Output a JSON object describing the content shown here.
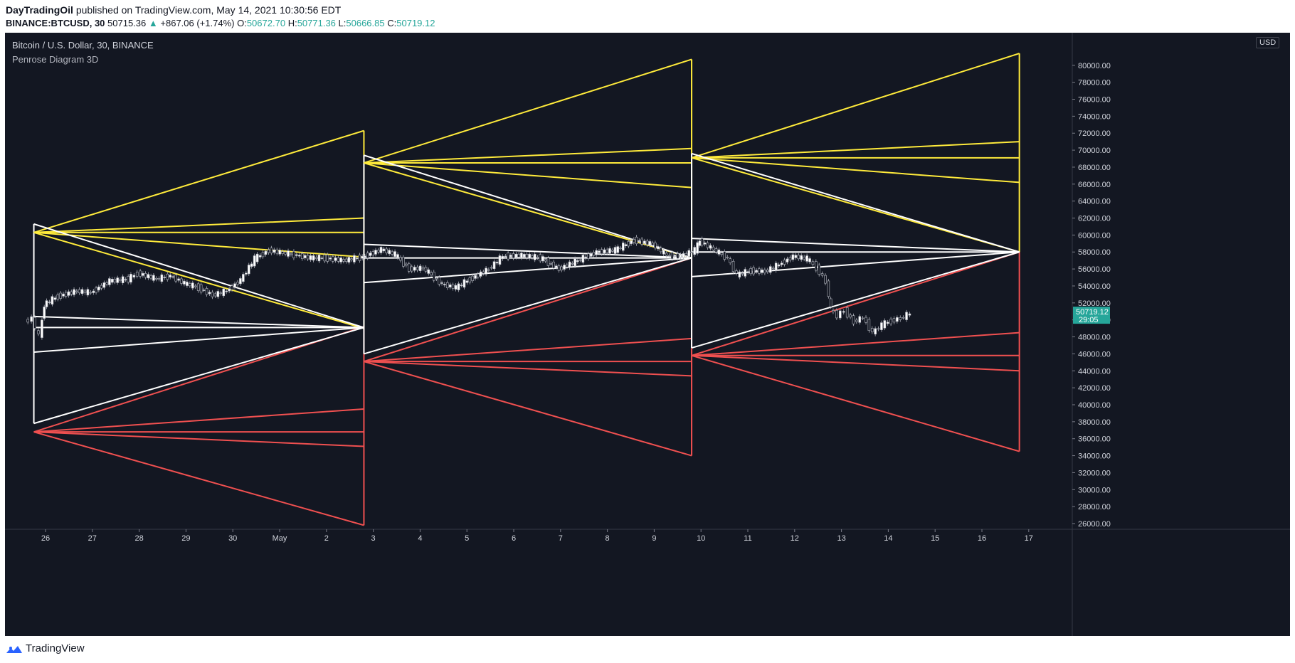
{
  "header": {
    "publisher": "DayTradingOil",
    "published_text": "published on TradingView.com, May 14, 2021 10:30:56 EDT",
    "symbol_line": "BINANCE:BTCUSD, 30",
    "last_price": "50715.36",
    "change": "+867.06 (+1.74%)",
    "o_label": "O:",
    "o_value": "50672.70",
    "h_label": "H:",
    "h_value": "50771.36",
    "l_label": "L:",
    "l_value": "50666.85",
    "c_label": "C:",
    "c_value": "50719.12"
  },
  "chart": {
    "title": "Bitcoin / U.S. Dollar, 30, BINANCE",
    "indicator": "Penrose Diagram 3D",
    "currency": "USD",
    "price_label": "50719.12",
    "timer_label": "29:05"
  },
  "footer": {
    "brand": "TradingView"
  },
  "colors": {
    "background": "#131722",
    "yellow": "#ffeb3b",
    "white": "#ffffff",
    "red": "#f05050",
    "price_tag": "#26a69a"
  },
  "chart_data": {
    "type": "line",
    "subtitle": "Penrose Diagram 3D",
    "title": "Bitcoin / U.S. Dollar, 30, BINANCE",
    "x_ticks": [
      "26",
      "27",
      "28",
      "29",
      "30",
      "May",
      "2",
      "3",
      "4",
      "5",
      "6",
      "7",
      "8",
      "9",
      "10",
      "11",
      "12",
      "13",
      "14",
      "15",
      "16",
      "17"
    ],
    "ylim": [
      25000,
      83000
    ],
    "y_ticks": [
      26000,
      28000,
      30000,
      32000,
      34000,
      36000,
      38000,
      40000,
      42000,
      44000,
      46000,
      48000,
      50000,
      52000,
      54000,
      56000,
      58000,
      60000,
      62000,
      64000,
      66000,
      68000,
      70000,
      72000,
      74000,
      76000,
      78000,
      80000
    ],
    "price_series": [
      {
        "x": 25.6,
        "y": 49800
      },
      {
        "x": 25.75,
        "y": 50200
      },
      {
        "x": 25.9,
        "y": 48000
      },
      {
        "x": 26.0,
        "y": 51800
      },
      {
        "x": 26.3,
        "y": 52800
      },
      {
        "x": 26.7,
        "y": 53400
      },
      {
        "x": 27.0,
        "y": 53200
      },
      {
        "x": 27.4,
        "y": 54600
      },
      {
        "x": 27.8,
        "y": 54800
      },
      {
        "x": 28.0,
        "y": 55500
      },
      {
        "x": 28.4,
        "y": 54800
      },
      {
        "x": 28.7,
        "y": 55200
      },
      {
        "x": 29.0,
        "y": 54300
      },
      {
        "x": 29.3,
        "y": 53800
      },
      {
        "x": 29.6,
        "y": 52900
      },
      {
        "x": 29.9,
        "y": 53400
      },
      {
        "x": 30.2,
        "y": 54700
      },
      {
        "x": 30.5,
        "y": 57200
      },
      {
        "x": 30.8,
        "y": 58200
      },
      {
        "x": 31.1,
        "y": 57900
      },
      {
        "x": 31.4,
        "y": 57600
      },
      {
        "x": 31.7,
        "y": 57300
      },
      {
        "x": 32.0,
        "y": 57300
      },
      {
        "x": 32.4,
        "y": 57000
      },
      {
        "x": 32.8,
        "y": 57400
      },
      {
        "x": 33.2,
        "y": 58300
      },
      {
        "x": 33.5,
        "y": 57700
      },
      {
        "x": 33.8,
        "y": 56000
      },
      {
        "x": 34.1,
        "y": 56100
      },
      {
        "x": 34.5,
        "y": 54200
      },
      {
        "x": 34.8,
        "y": 53800
      },
      {
        "x": 35.1,
        "y": 54800
      },
      {
        "x": 35.5,
        "y": 56000
      },
      {
        "x": 35.8,
        "y": 57500
      },
      {
        "x": 36.2,
        "y": 57600
      },
      {
        "x": 36.6,
        "y": 57300
      },
      {
        "x": 37.0,
        "y": 56000
      },
      {
        "x": 37.4,
        "y": 57000
      },
      {
        "x": 37.8,
        "y": 58000
      },
      {
        "x": 38.2,
        "y": 58200
      },
      {
        "x": 38.6,
        "y": 59400
      },
      {
        "x": 39.0,
        "y": 58900
      },
      {
        "x": 39.3,
        "y": 57600
      },
      {
        "x": 39.6,
        "y": 57500
      },
      {
        "x": 39.9,
        "y": 58200
      },
      {
        "x": 40.0,
        "y": 59300
      },
      {
        "x": 40.3,
        "y": 58300
      },
      {
        "x": 40.6,
        "y": 57300
      },
      {
        "x": 40.8,
        "y": 55300
      },
      {
        "x": 41.1,
        "y": 55800
      },
      {
        "x": 41.4,
        "y": 55700
      },
      {
        "x": 41.7,
        "y": 56500
      },
      {
        "x": 42.0,
        "y": 57500
      },
      {
        "x": 42.3,
        "y": 57200
      },
      {
        "x": 42.5,
        "y": 56200
      },
      {
        "x": 42.7,
        "y": 54500
      },
      {
        "x": 42.8,
        "y": 51200
      },
      {
        "x": 42.95,
        "y": 50500
      },
      {
        "x": 43.1,
        "y": 51100
      },
      {
        "x": 43.3,
        "y": 49800
      },
      {
        "x": 43.5,
        "y": 50300
      },
      {
        "x": 43.7,
        "y": 48500
      },
      {
        "x": 43.9,
        "y": 49400
      },
      {
        "x": 44.1,
        "y": 49900
      },
      {
        "x": 44.3,
        "y": 50200
      },
      {
        "x": 44.5,
        "y": 50719
      }
    ],
    "diagrams": [
      {
        "x_start": 25.75,
        "x_end": 32.8,
        "yellow_apex": 60300,
        "yellow_right": [
          72300,
          62000,
          60300,
          57400,
          49000
        ],
        "white_left": [
          61300,
          50400,
          49100,
          46200,
          37800
        ],
        "white_right_apex": 49100,
        "red_apex": 36800,
        "red_right": [
          49200,
          39500,
          36800,
          35100,
          25800
        ]
      },
      {
        "x_start": 32.8,
        "x_end": 39.8,
        "yellow_apex": 68500,
        "yellow_right": [
          80700,
          70200,
          68500,
          65600,
          57300
        ],
        "white_left": [
          69400,
          58900,
          57300,
          54400,
          46000
        ],
        "white_right_apex": 57300,
        "red_apex": 45100,
        "red_right": [
          57300,
          47800,
          45100,
          43400,
          34000
        ]
      },
      {
        "x_start": 39.8,
        "x_end": 46.8,
        "yellow_apex": 69100,
        "yellow_right": [
          81400,
          71000,
          69100,
          66200,
          58000
        ],
        "white_left": [
          69600,
          59600,
          58000,
          55100,
          46700
        ],
        "white_right_apex": 58000,
        "red_apex": 45800,
        "red_right": [
          58000,
          48500,
          45800,
          44000,
          34500
        ]
      }
    ]
  }
}
